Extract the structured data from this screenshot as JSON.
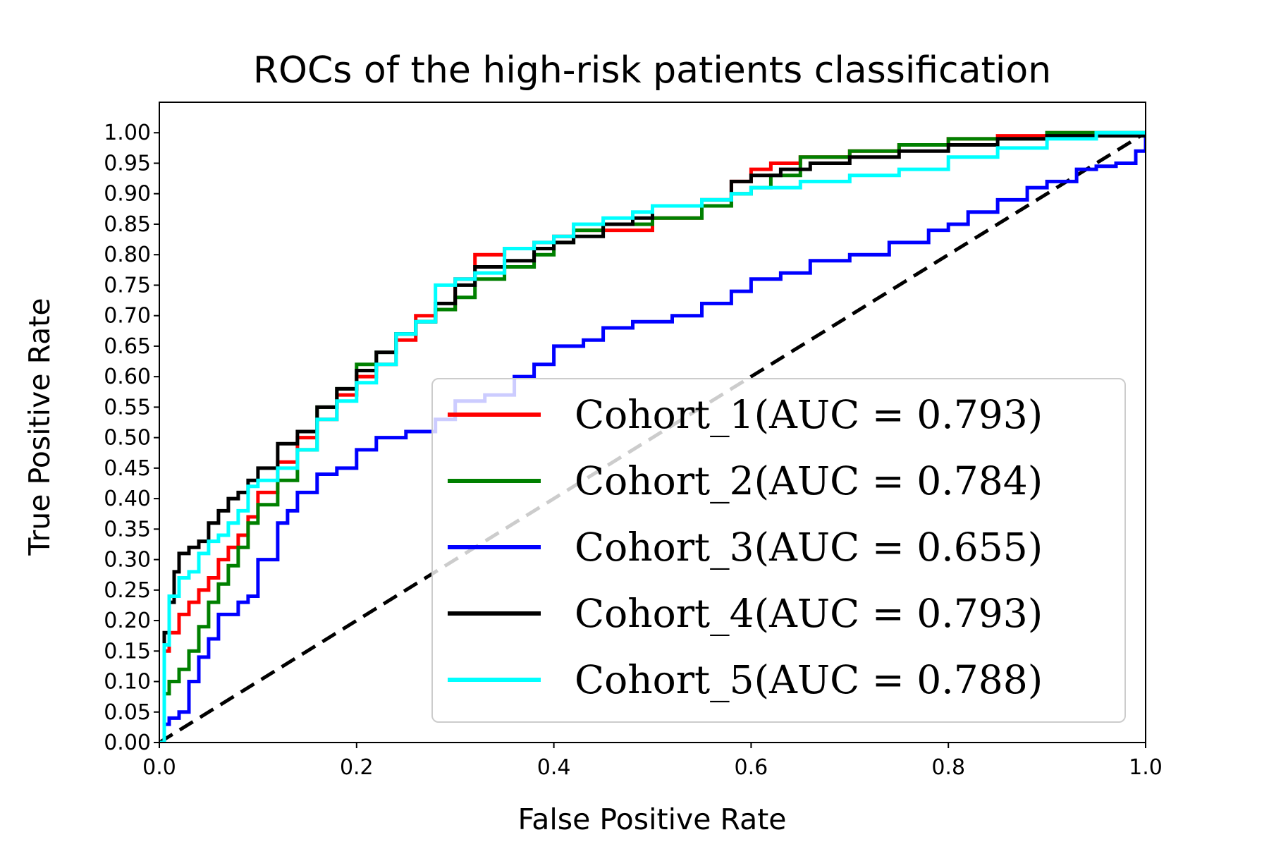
{
  "chart_data": {
    "type": "line",
    "title": "ROCs of the high-risk patients classification",
    "xlabel": "False Positive Rate",
    "ylabel": "True Positive Rate",
    "xlim": [
      0.0,
      1.0
    ],
    "ylim": [
      0.0,
      1.05
    ],
    "xticks": [
      "0.0",
      "0.2",
      "0.4",
      "0.6",
      "0.8",
      "1.0"
    ],
    "yticks": [
      "0.00",
      "0.05",
      "0.10",
      "0.15",
      "0.20",
      "0.25",
      "0.30",
      "0.35",
      "0.40",
      "0.45",
      "0.50",
      "0.55",
      "0.60",
      "0.65",
      "0.70",
      "0.75",
      "0.80",
      "0.85",
      "0.90",
      "0.95",
      "1.00"
    ],
    "grid": false,
    "legend_position": "lower-right",
    "series": [
      {
        "name": "Cohort_1(AUC = 0.793)",
        "color": "#ff0000",
        "points": [
          [
            0,
            0
          ],
          [
            0.005,
            0.15
          ],
          [
            0.01,
            0.18
          ],
          [
            0.02,
            0.21
          ],
          [
            0.03,
            0.23
          ],
          [
            0.04,
            0.25
          ],
          [
            0.05,
            0.27
          ],
          [
            0.06,
            0.3
          ],
          [
            0.07,
            0.32
          ],
          [
            0.08,
            0.34
          ],
          [
            0.09,
            0.37
          ],
          [
            0.1,
            0.41
          ],
          [
            0.12,
            0.46
          ],
          [
            0.14,
            0.5
          ],
          [
            0.16,
            0.53
          ],
          [
            0.18,
            0.57
          ],
          [
            0.2,
            0.6
          ],
          [
            0.22,
            0.62
          ],
          [
            0.24,
            0.66
          ],
          [
            0.26,
            0.7
          ],
          [
            0.28,
            0.71
          ],
          [
            0.3,
            0.76
          ],
          [
            0.32,
            0.8
          ],
          [
            0.35,
            0.81
          ],
          [
            0.38,
            0.82
          ],
          [
            0.4,
            0.83
          ],
          [
            0.42,
            0.84
          ],
          [
            0.45,
            0.84
          ],
          [
            0.5,
            0.86
          ],
          [
            0.55,
            0.88
          ],
          [
            0.58,
            0.92
          ],
          [
            0.6,
            0.94
          ],
          [
            0.62,
            0.95
          ],
          [
            0.65,
            0.96
          ],
          [
            0.7,
            0.97
          ],
          [
            0.75,
            0.98
          ],
          [
            0.8,
            0.99
          ],
          [
            0.85,
            0.995
          ],
          [
            0.9,
            1.0
          ],
          [
            1.0,
            1.0
          ]
        ]
      },
      {
        "name": "Cohort_2(AUC = 0.784)",
        "color": "#008000",
        "points": [
          [
            0,
            0
          ],
          [
            0.005,
            0.08
          ],
          [
            0.01,
            0.1
          ],
          [
            0.02,
            0.12
          ],
          [
            0.03,
            0.15
          ],
          [
            0.04,
            0.19
          ],
          [
            0.05,
            0.23
          ],
          [
            0.06,
            0.26
          ],
          [
            0.07,
            0.29
          ],
          [
            0.08,
            0.32
          ],
          [
            0.09,
            0.36
          ],
          [
            0.1,
            0.39
          ],
          [
            0.12,
            0.43
          ],
          [
            0.14,
            0.48
          ],
          [
            0.16,
            0.55
          ],
          [
            0.18,
            0.58
          ],
          [
            0.2,
            0.62
          ],
          [
            0.22,
            0.64
          ],
          [
            0.24,
            0.67
          ],
          [
            0.26,
            0.69
          ],
          [
            0.28,
            0.71
          ],
          [
            0.3,
            0.73
          ],
          [
            0.32,
            0.76
          ],
          [
            0.35,
            0.78
          ],
          [
            0.38,
            0.8
          ],
          [
            0.4,
            0.82
          ],
          [
            0.42,
            0.84
          ],
          [
            0.45,
            0.85
          ],
          [
            0.5,
            0.86
          ],
          [
            0.55,
            0.88
          ],
          [
            0.58,
            0.9
          ],
          [
            0.6,
            0.91
          ],
          [
            0.62,
            0.93
          ],
          [
            0.65,
            0.96
          ],
          [
            0.7,
            0.97
          ],
          [
            0.75,
            0.98
          ],
          [
            0.8,
            0.99
          ],
          [
            0.85,
            0.99
          ],
          [
            0.9,
            1.0
          ],
          [
            1.0,
            1.0
          ]
        ]
      },
      {
        "name": "Cohort_3(AUC = 0.655)",
        "color": "#0000ff",
        "points": [
          [
            0,
            0
          ],
          [
            0.005,
            0.03
          ],
          [
            0.01,
            0.04
          ],
          [
            0.02,
            0.05
          ],
          [
            0.03,
            0.1
          ],
          [
            0.04,
            0.14
          ],
          [
            0.05,
            0.17
          ],
          [
            0.06,
            0.21
          ],
          [
            0.08,
            0.23
          ],
          [
            0.09,
            0.24
          ],
          [
            0.1,
            0.3
          ],
          [
            0.12,
            0.36
          ],
          [
            0.13,
            0.38
          ],
          [
            0.14,
            0.41
          ],
          [
            0.16,
            0.44
          ],
          [
            0.18,
            0.45
          ],
          [
            0.2,
            0.48
          ],
          [
            0.22,
            0.5
          ],
          [
            0.25,
            0.51
          ],
          [
            0.28,
            0.53
          ],
          [
            0.3,
            0.56
          ],
          [
            0.33,
            0.57
          ],
          [
            0.36,
            0.6
          ],
          [
            0.38,
            0.62
          ],
          [
            0.4,
            0.65
          ],
          [
            0.43,
            0.66
          ],
          [
            0.45,
            0.68
          ],
          [
            0.48,
            0.69
          ],
          [
            0.52,
            0.7
          ],
          [
            0.55,
            0.72
          ],
          [
            0.58,
            0.74
          ],
          [
            0.6,
            0.76
          ],
          [
            0.63,
            0.77
          ],
          [
            0.66,
            0.79
          ],
          [
            0.7,
            0.8
          ],
          [
            0.74,
            0.82
          ],
          [
            0.78,
            0.84
          ],
          [
            0.8,
            0.85
          ],
          [
            0.82,
            0.87
          ],
          [
            0.85,
            0.89
          ],
          [
            0.88,
            0.91
          ],
          [
            0.9,
            0.92
          ],
          [
            0.93,
            0.94
          ],
          [
            0.95,
            0.945
          ],
          [
            0.97,
            0.95
          ],
          [
            0.99,
            0.97
          ],
          [
            1.0,
            1.0
          ]
        ]
      },
      {
        "name": "Cohort_4(AUC = 0.793)",
        "color": "#000000",
        "points": [
          [
            0,
            0
          ],
          [
            0.005,
            0.18
          ],
          [
            0.01,
            0.23
          ],
          [
            0.015,
            0.28
          ],
          [
            0.02,
            0.31
          ],
          [
            0.03,
            0.32
          ],
          [
            0.04,
            0.33
          ],
          [
            0.05,
            0.36
          ],
          [
            0.06,
            0.38
          ],
          [
            0.07,
            0.4
          ],
          [
            0.08,
            0.41
          ],
          [
            0.09,
            0.43
          ],
          [
            0.1,
            0.45
          ],
          [
            0.12,
            0.49
          ],
          [
            0.14,
            0.51
          ],
          [
            0.16,
            0.55
          ],
          [
            0.18,
            0.58
          ],
          [
            0.2,
            0.61
          ],
          [
            0.22,
            0.64
          ],
          [
            0.24,
            0.67
          ],
          [
            0.26,
            0.69
          ],
          [
            0.28,
            0.72
          ],
          [
            0.3,
            0.75
          ],
          [
            0.32,
            0.78
          ],
          [
            0.35,
            0.79
          ],
          [
            0.38,
            0.81
          ],
          [
            0.4,
            0.82
          ],
          [
            0.42,
            0.83
          ],
          [
            0.45,
            0.85
          ],
          [
            0.48,
            0.86
          ],
          [
            0.5,
            0.88
          ],
          [
            0.55,
            0.89
          ],
          [
            0.58,
            0.92
          ],
          [
            0.6,
            0.93
          ],
          [
            0.63,
            0.94
          ],
          [
            0.66,
            0.95
          ],
          [
            0.7,
            0.96
          ],
          [
            0.75,
            0.97
          ],
          [
            0.8,
            0.98
          ],
          [
            0.85,
            0.99
          ],
          [
            0.9,
            0.995
          ],
          [
            1.0,
            1.0
          ]
        ]
      },
      {
        "name": "Cohort_5(AUC = 0.788)",
        "color": "#00ffff",
        "points": [
          [
            0,
            0
          ],
          [
            0.005,
            0.16
          ],
          [
            0.01,
            0.24
          ],
          [
            0.02,
            0.27
          ],
          [
            0.03,
            0.28
          ],
          [
            0.04,
            0.31
          ],
          [
            0.05,
            0.33
          ],
          [
            0.06,
            0.34
          ],
          [
            0.07,
            0.36
          ],
          [
            0.08,
            0.38
          ],
          [
            0.09,
            0.42
          ],
          [
            0.1,
            0.43
          ],
          [
            0.12,
            0.45
          ],
          [
            0.14,
            0.48
          ],
          [
            0.16,
            0.53
          ],
          [
            0.18,
            0.56
          ],
          [
            0.2,
            0.59
          ],
          [
            0.22,
            0.62
          ],
          [
            0.24,
            0.67
          ],
          [
            0.26,
            0.69
          ],
          [
            0.28,
            0.75
          ],
          [
            0.3,
            0.76
          ],
          [
            0.32,
            0.77
          ],
          [
            0.35,
            0.81
          ],
          [
            0.38,
            0.82
          ],
          [
            0.4,
            0.83
          ],
          [
            0.42,
            0.85
          ],
          [
            0.45,
            0.86
          ],
          [
            0.48,
            0.87
          ],
          [
            0.5,
            0.88
          ],
          [
            0.55,
            0.89
          ],
          [
            0.58,
            0.9
          ],
          [
            0.6,
            0.91
          ],
          [
            0.65,
            0.92
          ],
          [
            0.7,
            0.93
          ],
          [
            0.75,
            0.94
          ],
          [
            0.8,
            0.96
          ],
          [
            0.85,
            0.975
          ],
          [
            0.9,
            0.99
          ],
          [
            0.95,
            1.0
          ],
          [
            1.0,
            1.0
          ]
        ]
      }
    ],
    "reference_line": {
      "style": "dashed",
      "color": "#000000",
      "points": [
        [
          0,
          0
        ],
        [
          1,
          1
        ]
      ]
    }
  }
}
